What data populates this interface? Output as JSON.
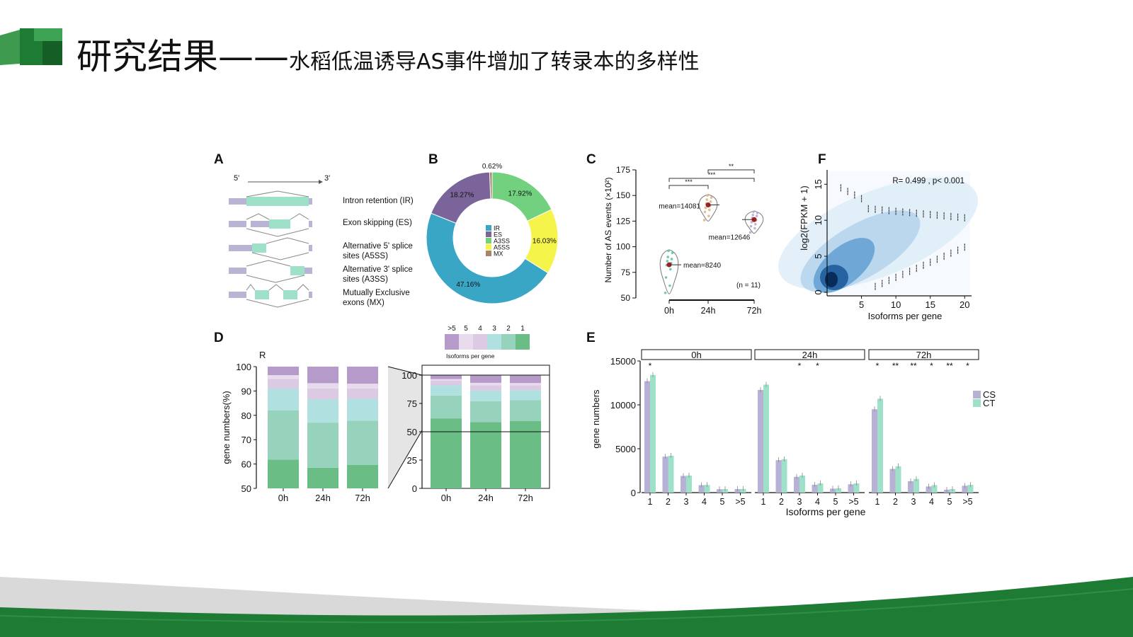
{
  "slide": {
    "title_main": "研究结果——",
    "title_sub": "水稻低温诱导AS事件增加了转录本的多样性",
    "colors": {
      "brand_green": "#1e7b34",
      "band_gray": "#d9d9d9"
    }
  },
  "panelA": {
    "letter": "A",
    "five_prime": "5'",
    "three_prime": "3'",
    "events": [
      {
        "line1": "Intron retention (IR)",
        "line2": ""
      },
      {
        "line1": "Exon skipping (ES)",
        "line2": ""
      },
      {
        "line1": "Alternative 5' splice",
        "line2": "sites (A5SS)"
      },
      {
        "line1": "Alternative 3' splice",
        "line2": "sites (A3SS)"
      },
      {
        "line1": "Mutually Exclusive",
        "line2": "exons (MX)"
      }
    ]
  },
  "panelB": {
    "letter": "B",
    "chart_data": {
      "type": "pie",
      "labels": [
        "IR",
        "ES",
        "A3SS",
        "A5SS",
        "MX"
      ],
      "values": [
        47.16,
        18.27,
        17.92,
        16.03,
        0.62
      ],
      "value_labels": [
        "47.16%",
        "18.27%",
        "17.92%",
        "16.03%",
        "0.62%"
      ],
      "colors": [
        "#3aa6c6",
        "#7a6499",
        "#72d17f",
        "#f4f44a",
        "#a9846b"
      ],
      "legend": "center"
    }
  },
  "panelC": {
    "letter": "C",
    "chart_data": {
      "type": "scatter",
      "ylabel": "Number of AS events (×10²)",
      "ylim": [
        50,
        175
      ],
      "yticks": [
        50,
        75,
        100,
        125,
        150,
        175
      ],
      "categories": [
        "0h",
        "24h",
        "72h"
      ],
      "means": [
        82.4,
        140.81,
        126.46
      ],
      "mean_labels": [
        "mean=8240",
        "mean=14081",
        "mean=12646"
      ],
      "points": [
        [
          55,
          62,
          70,
          78,
          82,
          84,
          86,
          88,
          90,
          94,
          96
        ],
        [
          126,
          130,
          134,
          136,
          138,
          140,
          142,
          144,
          146,
          148,
          150
        ],
        [
          114,
          118,
          120,
          122,
          124,
          126,
          128,
          130,
          131,
          133,
          134
        ]
      ],
      "n_label": "(n = 11)",
      "significance": [
        "***",
        "***",
        "**"
      ]
    }
  },
  "panelF": {
    "letter": "F",
    "chart_data": {
      "type": "heatmap",
      "xlabel": "Isoforms per gene",
      "ylabel": "log2(FPKM + 1)",
      "xticks": [
        5,
        10,
        15,
        20
      ],
      "yticks": [
        0,
        5,
        10,
        15
      ],
      "xlim": [
        0,
        21
      ],
      "ylim": [
        -0.5,
        17
      ],
      "annotation": "R= 0.499 , p< 0.001"
    }
  },
  "panelD": {
    "letter": "D",
    "sub_label": "R",
    "ylabel": "gene numbers(%)",
    "legend_title": "Isoforms per gene",
    "chart_data": {
      "type": "bar",
      "stacked": true,
      "categories": [
        "0h",
        "24h",
        "72h"
      ],
      "legend_labels": [
        ">5",
        "5",
        "4",
        "3",
        "2",
        "1"
      ],
      "series": [
        {
          "name": "1",
          "values": [
            61.8,
            58.5,
            59.6
          ],
          "color": "#6bbd86"
        },
        {
          "name": "2",
          "values": [
            20.2,
            18.5,
            18.2
          ],
          "color": "#97d3bc"
        },
        {
          "name": "3",
          "values": [
            9.0,
            9.5,
            9.0
          ],
          "color": "#b1e0e0"
        },
        {
          "name": "4",
          "values": [
            4.0,
            4.5,
            4.2
          ],
          "color": "#dcc9e3"
        },
        {
          "name": "5",
          "values": [
            1.5,
            2.2,
            2.0
          ],
          "color": "#e8dbed"
        },
        {
          "name": ">5",
          "values": [
            3.5,
            6.8,
            7.0
          ],
          "color": "#b69bca"
        }
      ],
      "left_ylim": [
        50,
        100
      ],
      "left_yticks": [
        50,
        60,
        70,
        80,
        90,
        100
      ],
      "right_ylim": [
        0,
        100
      ],
      "right_yticks": [
        0,
        25,
        50,
        75,
        100
      ]
    }
  },
  "panelE": {
    "letter": "E",
    "ylabel": "gene numbers",
    "xlabel": "Isoforms per gene",
    "chart_data": {
      "type": "bar",
      "facets": [
        "0h",
        "24h",
        "72h"
      ],
      "categories": [
        "1",
        "2",
        "3",
        "4",
        "5",
        ">5"
      ],
      "ylim": [
        0,
        15000
      ],
      "yticks": [
        0,
        5000,
        10000,
        15000
      ],
      "series": [
        {
          "name": "CS",
          "color": "#b7b1d6",
          "values": [
            [
              12700,
              4100,
              1900,
              850,
              380,
              400
            ],
            [
              11700,
              3700,
              1800,
              900,
              450,
              950
            ],
            [
              9500,
              2700,
              1300,
              700,
              330,
              780
            ]
          ]
        },
        {
          "name": "CT",
          "color": "#9fe0c8",
          "values": [
            [
              13400,
              4200,
              1950,
              870,
              400,
              420
            ],
            [
              12300,
              3800,
              1950,
              1050,
              500,
              1050
            ],
            [
              10700,
              3000,
              1550,
              850,
              400,
              880
            ]
          ]
        }
      ],
      "significance": [
        [
          "*",
          "",
          "",
          "",
          "",
          ""
        ],
        [
          "",
          "",
          "*",
          "*",
          "",
          ""
        ],
        [
          "*",
          "**",
          "**",
          "*",
          "**",
          "*"
        ]
      ]
    }
  }
}
